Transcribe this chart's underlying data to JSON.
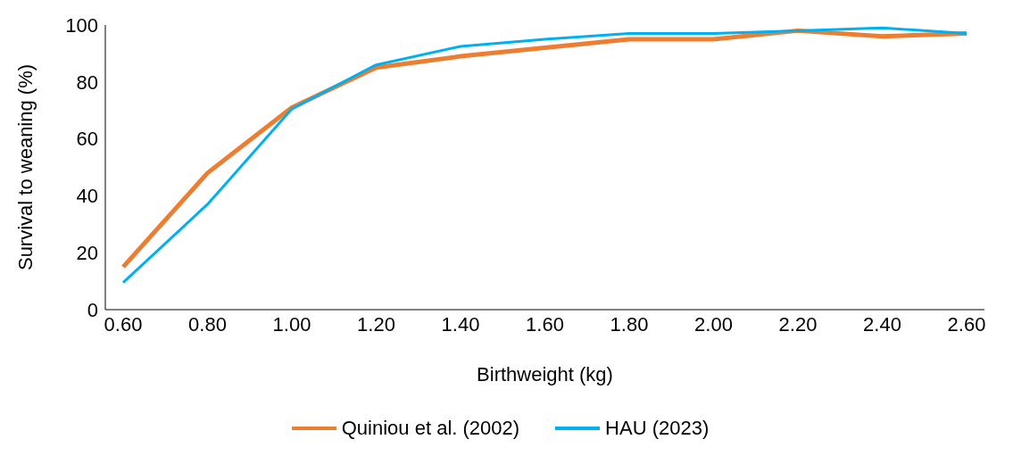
{
  "chart_data": {
    "type": "line",
    "xlabel": "Birthweight (kg)",
    "ylabel": "Survival to weaning (%)",
    "categories": [
      "0.60",
      "0.80",
      "1.00",
      "1.20",
      "1.40",
      "1.60",
      "1.80",
      "2.00",
      "2.20",
      "2.40",
      "2.60"
    ],
    "series": [
      {
        "name": "Quiniou et al. (2002)",
        "color": "#ed7d31",
        "values": [
          15,
          48,
          71,
          85,
          89,
          92,
          95,
          95,
          98,
          96,
          97
        ]
      },
      {
        "name": "HAU (2023)",
        "color": "#00b0f0",
        "values": [
          9.5,
          37,
          70.5,
          86,
          92.5,
          95,
          97,
          97,
          98,
          99,
          97
        ]
      }
    ],
    "ylim": [
      0,
      100
    ],
    "yticks": [
      0,
      20,
      40,
      60,
      80,
      100
    ],
    "grid": false,
    "legend": "bottom",
    "marker": "none",
    "line_style": "solid"
  }
}
